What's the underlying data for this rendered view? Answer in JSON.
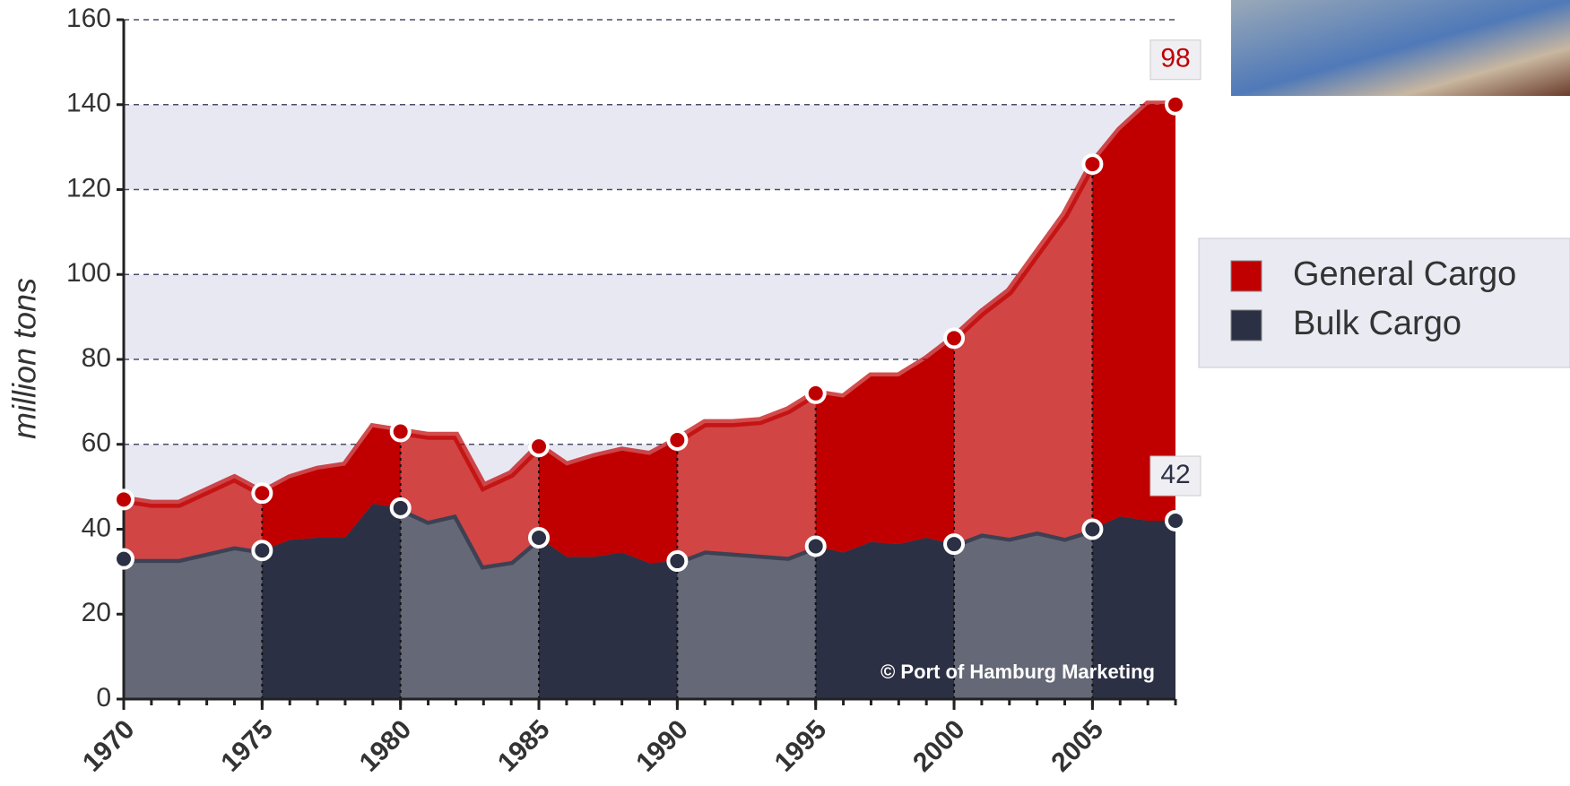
{
  "chart_data": {
    "type": "stacked_area",
    "y_label": "million tons",
    "annotation": "© Port of Hamburg Marketing",
    "x": [
      1970,
      1971,
      1972,
      1973,
      1974,
      1975,
      1976,
      1977,
      1978,
      1979,
      1980,
      1981,
      1982,
      1983,
      1984,
      1985,
      1986,
      1987,
      1988,
      1989,
      1990,
      1991,
      1992,
      1993,
      1994,
      1995,
      1996,
      1997,
      1998,
      1999,
      2000,
      2001,
      2002,
      2003,
      2004,
      2005,
      2006,
      2007,
      2008
    ],
    "series": [
      {
        "name": "General Cargo",
        "color": "#c00000",
        "values": [
          14,
          13,
          13,
          14.5,
          16,
          13.5,
          14.5,
          16,
          17,
          18,
          18,
          20,
          18.5,
          18.5,
          20.5,
          21.5,
          21.5,
          23.5,
          24,
          25.5,
          28.5,
          30,
          30.5,
          31.5,
          34.5,
          36,
          36.5,
          39,
          39.5,
          42,
          48.5,
          52,
          58,
          65.5,
          76,
          86,
          91,
          98,
          98
        ]
      },
      {
        "name": "Bulk Cargo",
        "color": "#2c3044",
        "values": [
          33,
          33,
          33,
          34.5,
          36,
          35,
          37.5,
          38,
          38,
          46,
          45,
          42,
          43.5,
          31.5,
          32.5,
          38,
          33.5,
          33.5,
          34.5,
          32,
          32.5,
          35,
          34.5,
          34,
          33.5,
          36,
          34.5,
          37,
          36.5,
          38,
          36.5,
          39,
          38,
          39.5,
          38,
          40,
          43,
          42,
          42
        ]
      }
    ],
    "xlim": [
      1970,
      2008
    ],
    "xticks": [
      1970,
      1975,
      1980,
      1985,
      1990,
      1995,
      2000,
      2005
    ],
    "ylim": [
      0,
      160
    ],
    "yticks": [
      0,
      20,
      40,
      60,
      80,
      100,
      120,
      140,
      160
    ],
    "grid": true,
    "legend": "right"
  }
}
